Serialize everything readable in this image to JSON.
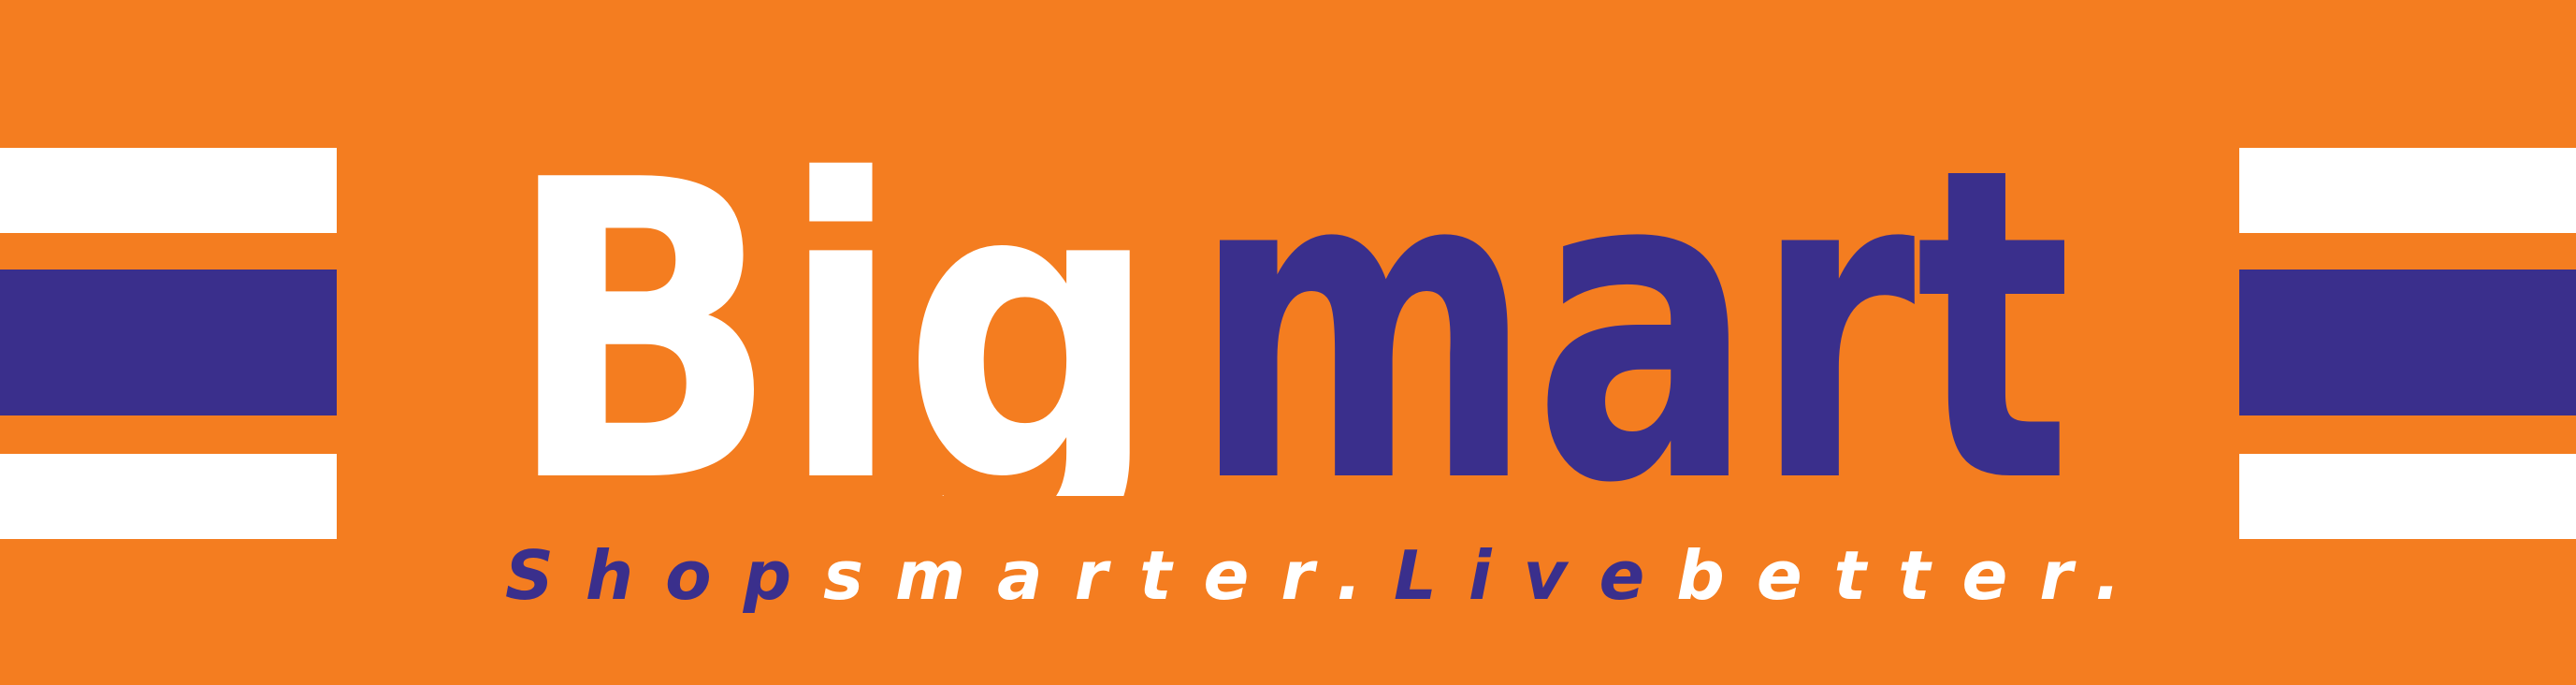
{
  "brand": {
    "logo_word_1": "Big",
    "logo_word_2": "mart",
    "colors": {
      "background": "#F47D20",
      "primary": "#3A2F8C",
      "secondary": "#FFFFFF"
    }
  },
  "tagline": {
    "w1": "Shop",
    "w2": "smarter.",
    "w3": "Live",
    "w4": "better."
  },
  "decorations": {
    "left_stripes": "stripe-block",
    "right_stripes": "stripe-block"
  }
}
